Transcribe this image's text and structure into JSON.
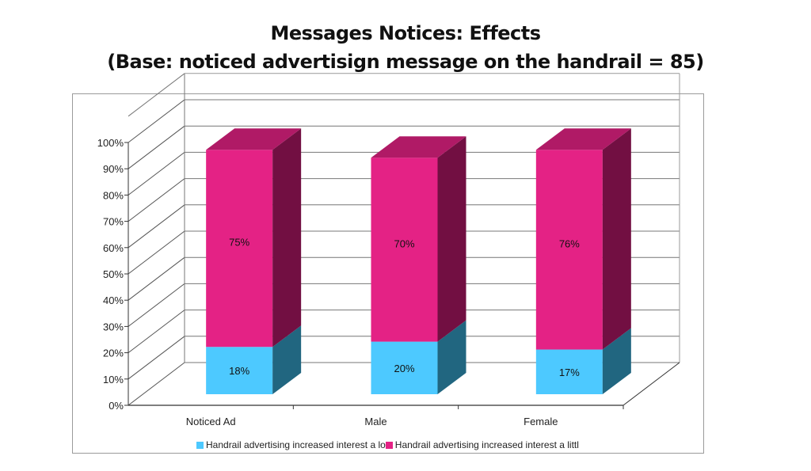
{
  "chart_data": {
    "type": "bar",
    "stacked": true,
    "three_d": true,
    "title": "Messages Notices: Effects",
    "subtitle": "(Base: noticed advertisign message on the handrail = 85)",
    "categories": [
      "Noticed Ad",
      "Male",
      "Female"
    ],
    "series": [
      {
        "name": "Handrail advertising increased interest a lo",
        "values": [
          18,
          20,
          17
        ],
        "color": "#4DC9FF",
        "side_color": "#216680",
        "labels": [
          "18%",
          "20%",
          "17%"
        ]
      },
      {
        "name": "Handrail advertising increased interest a littl",
        "values": [
          75,
          70,
          76
        ],
        "color": "#E42285",
        "side_color": "#720F42",
        "top_color": "#B01A66",
        "labels": [
          "75%",
          "70%",
          "76%"
        ]
      }
    ],
    "xlabel": "",
    "ylabel": "",
    "ylim": [
      0,
      100
    ],
    "yticks": [
      "0%",
      "10%",
      "20%",
      "30%",
      "40%",
      "50%",
      "60%",
      "70%",
      "80%",
      "90%",
      "100%"
    ],
    "grid": true,
    "legend_position": "bottom"
  },
  "title": {
    "line1": "Messages Notices: Effects",
    "line2": "(Base: noticed advertisign message on the handrail = 85)"
  },
  "legend": {
    "items": [
      {
        "label": "Handrail advertising increased interest a lo",
        "color": "#4DC9FF"
      },
      {
        "label": "Handrail advertising increased interest a littl",
        "color": "#E42285"
      }
    ]
  }
}
